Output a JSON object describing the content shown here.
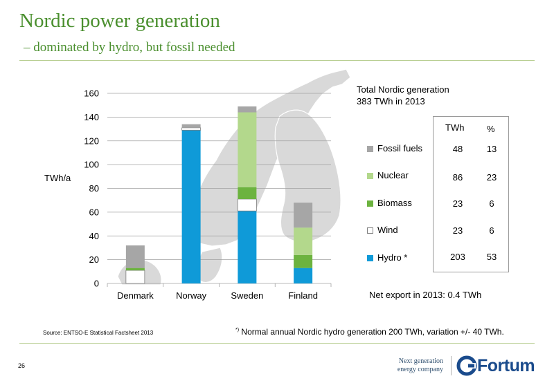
{
  "slide": {
    "title": "Nordic power generation",
    "subtitle": "– dominated by hydro, but fossil needed",
    "page_number": "26",
    "source": "Source: ENTSO-E Statistical Factsheet 2013",
    "footnote_mark": "*)",
    "footnote_text": " Normal annual Nordic hydro generation 200 TWh, variation +/- 40 TWh.",
    "tagline_line1": "Next generation",
    "tagline_line2": "energy company",
    "logo_text": "Fortum"
  },
  "summary": {
    "line1": "Total Nordic generation",
    "line2": "383 TWh in 2013",
    "col_twh": "TWh",
    "col_pct": "%",
    "net_export": "Net export in 2013: 0.4 TWh"
  },
  "legend": [
    {
      "label": "Fossil fuels",
      "color": "#a6a6a6",
      "twh": "48",
      "pct": "13"
    },
    {
      "label": "Nuclear",
      "color": "#b3d88c",
      "twh": "86",
      "pct": "23"
    },
    {
      "label": "Biomass",
      "color": "#6cb33f",
      "twh": "23",
      "pct": "6"
    },
    {
      "label": "Wind",
      "color": "#ffffff",
      "twh": "23",
      "pct": "6"
    },
    {
      "label": "Hydro *",
      "color": "#0f9ad8",
      "twh": "203",
      "pct": "53"
    }
  ],
  "colors": {
    "hydro": "#0f9ad8",
    "wind": "#ffffff",
    "biomass": "#6cb33f",
    "nuclear": "#b3d88c",
    "fossil": "#a6a6a6",
    "map": "#d9d9d9",
    "brand_green": "#4a8f2e"
  },
  "chart_data": {
    "type": "bar",
    "stacked": true,
    "categories": [
      "Denmark",
      "Norway",
      "Sweden",
      "Finland"
    ],
    "ylabel": "TWh/a",
    "ylim": [
      0,
      160
    ],
    "yticks": [
      0,
      20,
      40,
      60,
      80,
      100,
      120,
      140,
      160
    ],
    "grid": true,
    "series": [
      {
        "name": "Hydro *",
        "color": "#0f9ad8",
        "values": [
          0,
          129,
          61,
          13
        ]
      },
      {
        "name": "Wind",
        "color": "#ffffff",
        "values": [
          11,
          2,
          10,
          0
        ]
      },
      {
        "name": "Biomass",
        "color": "#6cb33f",
        "values": [
          2,
          0,
          10,
          11
        ]
      },
      {
        "name": "Nuclear",
        "color": "#b3d88c",
        "values": [
          0,
          0,
          63,
          23
        ]
      },
      {
        "name": "Fossil fuels",
        "color": "#a6a6a6",
        "values": [
          19,
          3,
          5,
          21
        ]
      }
    ]
  }
}
